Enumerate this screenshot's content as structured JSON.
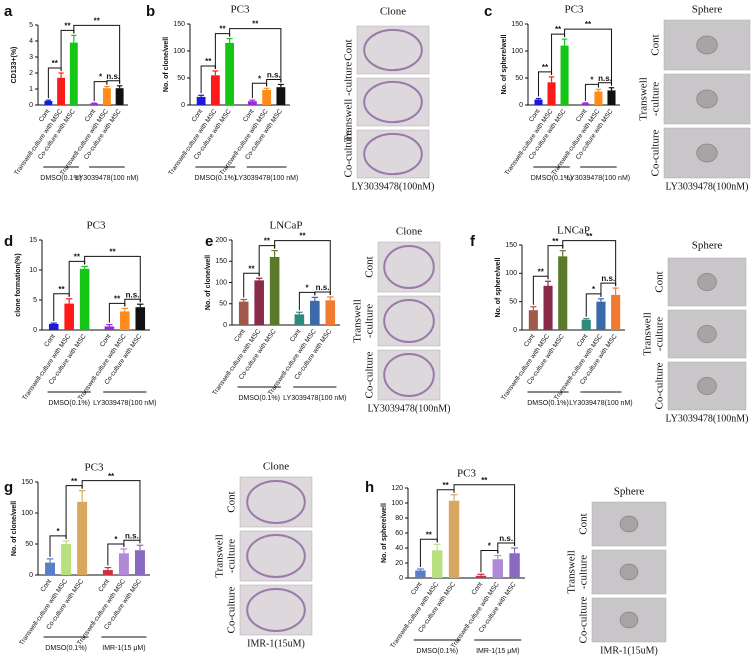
{
  "chart_data": [
    {
      "type": "bar",
      "panel": "a",
      "ylabel": "CD133+(%)",
      "categories": [
        "Cont",
        "Transwell-culture with MSC",
        "Co-culture with MSC",
        "Cont",
        "Transwell-culture with MSC",
        "Co-culture with MSC"
      ],
      "values": [
        0.25,
        1.7,
        3.9,
        0.1,
        1.05,
        1.05
      ],
      "errors": [
        0.05,
        0.3,
        0.45,
        0.02,
        0.1,
        0.15
      ],
      "colors": [
        "#1b1bd6",
        "#ff1a1a",
        "#16c616",
        "#9b2bd6",
        "#ff8c1a",
        "#111111"
      ],
      "ylim": [
        0,
        5
      ],
      "yticks": [
        0,
        1,
        2,
        3,
        4,
        5
      ],
      "significance": [
        "**",
        "**",
        "**",
        "*",
        "n.s."
      ],
      "groups": [
        "DMSO(0.1%)",
        "LY3039478(100 nM)"
      ]
    },
    {
      "type": "bar",
      "panel": "b",
      "title": "PC3",
      "ylabel": "No. of clone/well",
      "categories": [
        "Cont",
        "Transwell-culture with MSC",
        "Co-culture with MSC",
        "Cont",
        "Transwell-culture with MSC",
        "Co-culture with MSC"
      ],
      "values": [
        15,
        55,
        115,
        7,
        28,
        33
      ],
      "errors": [
        3,
        8,
        8,
        2,
        3,
        5
      ],
      "colors": [
        "#1b1bd6",
        "#ff1a1a",
        "#16c616",
        "#9b2bd6",
        "#ff8c1a",
        "#111111"
      ],
      "ylim": [
        0,
        150
      ],
      "yticks": [
        0,
        50,
        100,
        150
      ],
      "significance": [
        "**",
        "**",
        "**",
        "*",
        "n.s."
      ],
      "groups": [
        "DMSO(0.1%)",
        "LY3039478(100 nM)"
      ]
    },
    {
      "type": "bar",
      "panel": "c",
      "title": "PC3",
      "ylabel": "No. of sphere/well",
      "categories": [
        "Cont",
        "Transwell-culture with MSC",
        "Co-culture with MSC",
        "Cont",
        "Transwell-culture with MSC",
        "Co-culture with MSC"
      ],
      "values": [
        10,
        42,
        110,
        3,
        25,
        27
      ],
      "errors": [
        2,
        10,
        12,
        1,
        4,
        5
      ],
      "colors": [
        "#1b1bd6",
        "#ff1a1a",
        "#16c616",
        "#9b2bd6",
        "#ff8c1a",
        "#111111"
      ],
      "ylim": [
        0,
        150
      ],
      "yticks": [
        0,
        50,
        100,
        150
      ],
      "significance": [
        "**",
        "**",
        "**",
        "*",
        "n.s."
      ],
      "groups": [
        "DMSO(0.1%)",
        "LY3039478(100 nM)"
      ]
    },
    {
      "type": "bar",
      "panel": "d",
      "title": "PC3",
      "ylabel": "clone formation(%)",
      "categories": [
        "Cont",
        "Transwell-culture with MSC",
        "Co-culture with MSC",
        "Cont",
        "Transwell-culture with MSC",
        "Co-culture with MSC"
      ],
      "values": [
        1,
        4.4,
        10.2,
        0.6,
        3.1,
        3.8
      ],
      "errors": [
        0.15,
        0.8,
        0.4,
        0.3,
        0.5,
        0.5
      ],
      "colors": [
        "#1b1bd6",
        "#ff1a1a",
        "#16c616",
        "#9b2bd6",
        "#ff8c1a",
        "#111111"
      ],
      "ylim": [
        0,
        15
      ],
      "yticks": [
        0,
        5,
        10,
        15
      ],
      "significance": [
        "**",
        "**",
        "**",
        "**",
        "n.s."
      ],
      "groups": [
        "DMSO(0.1%)",
        "LY3039478(100 nM)"
      ]
    },
    {
      "type": "bar",
      "panel": "e",
      "title": "LNCaP",
      "ylabel": "No. of clone/well",
      "categories": [
        "Cont",
        "Transwell-culture with MSC",
        "Co-culture with MSC",
        "Cont",
        "Transwell-culture with MSC",
        "Co-culture with MSC"
      ],
      "values": [
        55,
        105,
        160,
        25,
        57,
        58
      ],
      "errors": [
        5,
        5,
        15,
        5,
        8,
        8
      ],
      "colors": [
        "#a0584a",
        "#8b2b4a",
        "#5a7a2a",
        "#2e8a7a",
        "#3a6aa8",
        "#f07a30"
      ],
      "ylim": [
        0,
        200
      ],
      "yticks": [
        0,
        50,
        100,
        150,
        200
      ],
      "significance": [
        "**",
        "**",
        "**",
        "*",
        "n.s."
      ],
      "groups": [
        "DMSO(0.1%)",
        "LY3039478(100 nM)"
      ]
    },
    {
      "type": "bar",
      "panel": "f",
      "title": "LNCaP",
      "ylabel": "No. of sphere/well",
      "categories": [
        "Cont",
        "Transwell-culture with MSC",
        "Co-culture with MSC",
        "Cont",
        "Transwell-culture with MSC",
        "Co-culture with MSC"
      ],
      "values": [
        35,
        78,
        130,
        18,
        50,
        62
      ],
      "errors": [
        6,
        8,
        10,
        2,
        5,
        12
      ],
      "colors": [
        "#a0584a",
        "#8b2b4a",
        "#5a7a2a",
        "#2e8a7a",
        "#3a6aa8",
        "#f07a30"
      ],
      "ylim": [
        0,
        150
      ],
      "yticks": [
        0,
        50,
        100,
        150
      ],
      "significance": [
        "**",
        "**",
        "**",
        "*",
        "n.s."
      ],
      "groups": [
        "DMSO(0.1%)",
        "LY3039478(100 nM)"
      ]
    },
    {
      "type": "bar",
      "panel": "g",
      "title": "PC3",
      "ylabel": "No. of clone/well",
      "categories": [
        "Cont",
        "Transwell-culture with MSC",
        "Co-culture with MSC",
        "Cont",
        "Transwell-culture with MSC",
        "Co-culture with MSC"
      ],
      "values": [
        20,
        50,
        118,
        8,
        35,
        40
      ],
      "errors": [
        6,
        5,
        18,
        4,
        7,
        8
      ],
      "colors": [
        "#5b7ec8",
        "#b8e080",
        "#d8a860",
        "#d03040",
        "#b08ad8",
        "#8a6ac0"
      ],
      "ylim": [
        0,
        150
      ],
      "yticks": [
        0,
        50,
        100,
        150
      ],
      "significance": [
        "*",
        "**",
        "**",
        "*",
        "n.s."
      ],
      "groups": [
        "DMSO(0.1%)",
        "IMR-1(15 μM)"
      ]
    },
    {
      "type": "bar",
      "panel": "h",
      "title": "PC3",
      "ylabel": "No. of sphere/well",
      "categories": [
        "Cont",
        "Transwell-culture with MSC",
        "Co-culture with MSC",
        "Cont",
        "Transwell-culture with MSC",
        "Co-culture with MSC"
      ],
      "values": [
        10,
        37,
        103,
        3,
        25,
        33
      ],
      "errors": [
        2,
        8,
        8,
        2,
        5,
        7
      ],
      "colors": [
        "#5b7ec8",
        "#b8e080",
        "#d8a860",
        "#d03040",
        "#b08ad8",
        "#8a6ac0"
      ],
      "ylim": [
        0,
        120
      ],
      "yticks": [
        0,
        20,
        40,
        60,
        80,
        100,
        120
      ],
      "significance": [
        "**",
        "**",
        "**",
        "*",
        "n.s."
      ],
      "groups": [
        "DMSO(0.1%)",
        "IMR-1(15 μM)"
      ]
    }
  ],
  "image_panels": [
    {
      "header": "Clone",
      "rows": [
        [
          "Cont"
        ],
        [
          "Transwell -culture"
        ],
        [
          "Co-culture"
        ]
      ],
      "caption": "LY3039478(100nM)"
    },
    {
      "header": "Sphere",
      "rows": [
        [
          "Cont"
        ],
        [
          "Transwell",
          "-culture"
        ],
        [
          "Co-culture"
        ]
      ],
      "caption": "LY3039478(100nM)"
    },
    {
      "header": "Clone",
      "rows": [
        [
          "Cont"
        ],
        [
          "Transwell",
          "-culture"
        ],
        [
          "Co-culture"
        ]
      ],
      "caption": "LY3039478(100nM)"
    },
    {
      "header": "Sphere",
      "rows": [
        [
          "Cont"
        ],
        [
          "Transwell",
          "-culture"
        ],
        [
          "Co-culture"
        ]
      ],
      "caption": "LY3039478(100nM)"
    },
    {
      "header": "Clone",
      "rows": [
        [
          "Cont"
        ],
        [
          "Transwell",
          "-culture"
        ],
        [
          "Co-culture"
        ]
      ],
      "caption": "IMR-1(15uM)"
    },
    {
      "header": "Sphere",
      "rows": [
        [
          "Cont"
        ],
        [
          "Transwell",
          "-culture"
        ],
        [
          "Co-culture"
        ]
      ],
      "caption": "IMR-1(15uM)"
    }
  ]
}
